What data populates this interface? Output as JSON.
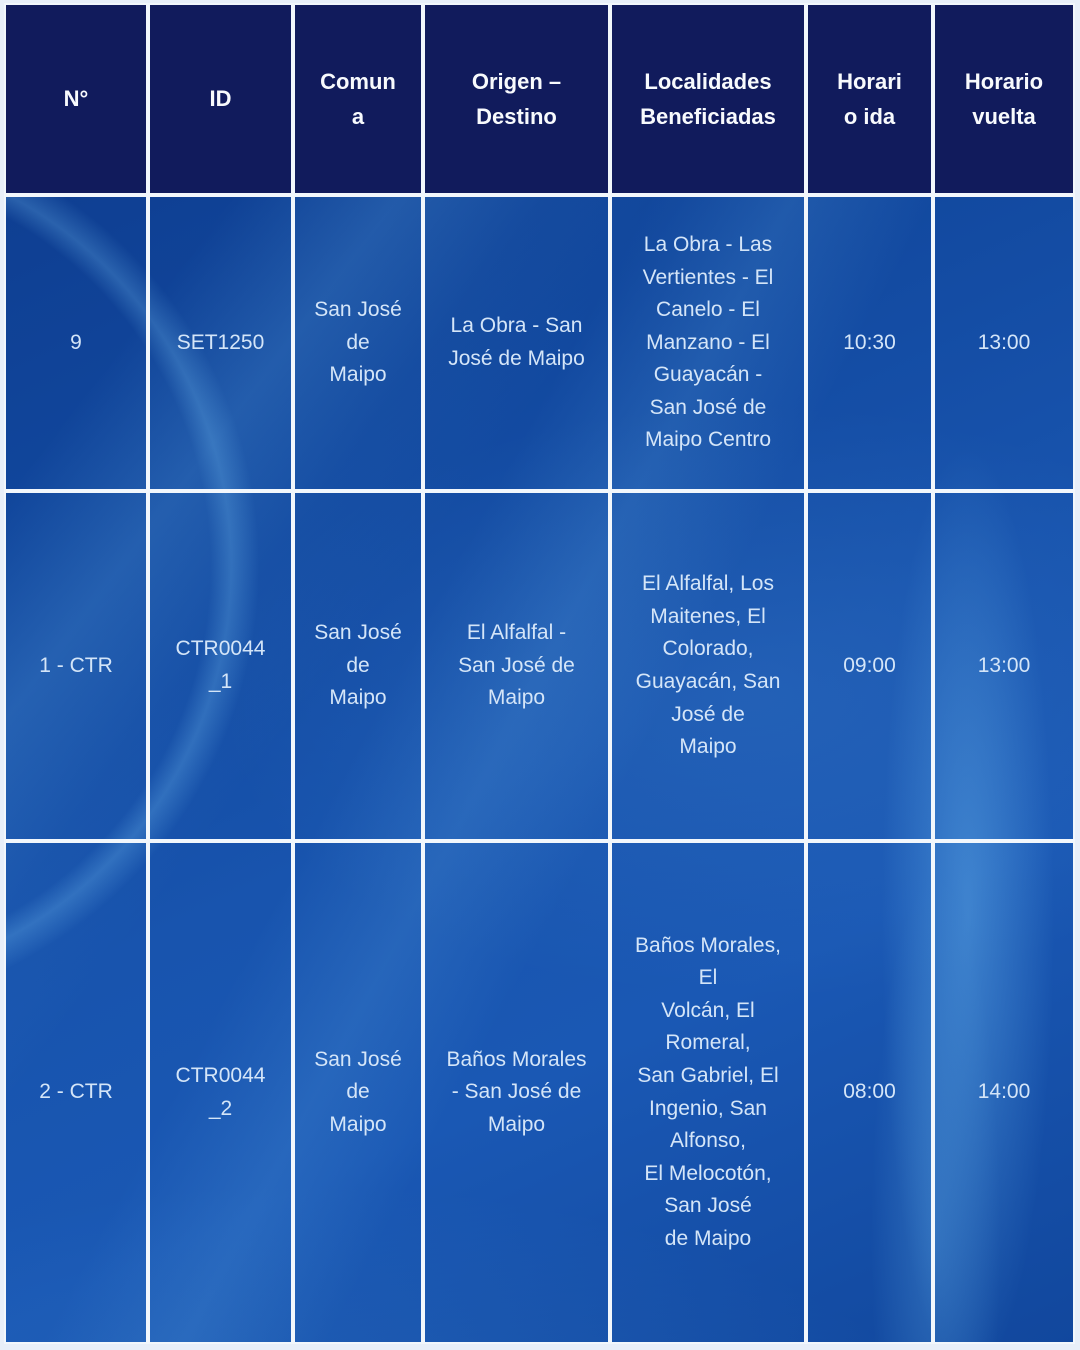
{
  "colors": {
    "header_background": "#111b5c",
    "cell_background_base": "#1854ae",
    "grid_border": "#f2f7fc",
    "header_text": "#f8fafd",
    "body_text": "#d4e5f8"
  },
  "table": {
    "columns": [
      {
        "label": "N°"
      },
      {
        "label": "ID"
      },
      {
        "label": "Comun\na"
      },
      {
        "label": "Origen –\nDestino"
      },
      {
        "label": "Localidades\nBeneficiadas"
      },
      {
        "label": "Horari\no ida"
      },
      {
        "label": "Horario\nvuelta"
      }
    ],
    "rows": [
      {
        "num": "9",
        "id": "SET1250",
        "comuna": "San José\nde\nMaipo",
        "origen": "La Obra - San\nJosé de Maipo",
        "localidades": "La Obra - Las\nVertientes - El\nCanelo - El\nManzano - El\nGuayacán -\nSan José de\nMaipo Centro",
        "ida": "10:30",
        "vuelta": "13:00"
      },
      {
        "num": "1 - CTR",
        "id": "CTR0044\n_1",
        "comuna": "San José\nde\nMaipo",
        "origen": "El Alfalfal -\nSan José de\nMaipo",
        "localidades": "El Alfalfal, Los\nMaitenes, El\nColorado,\nGuayacán, San\nJosé de\nMaipo",
        "ida": "09:00",
        "vuelta": "13:00"
      },
      {
        "num": "2 - CTR",
        "id": "CTR0044\n_2",
        "comuna": "San José\nde\nMaipo",
        "origen": "Baños Morales\n- San José de\nMaipo",
        "localidades": "Baños Morales,\nEl\nVolcán, El\nRomeral,\nSan Gabriel, El\nIngenio, San\nAlfonso,\nEl Melocotón,\nSan José\nde Maipo",
        "ida": "08:00",
        "vuelta": "14:00"
      }
    ]
  }
}
